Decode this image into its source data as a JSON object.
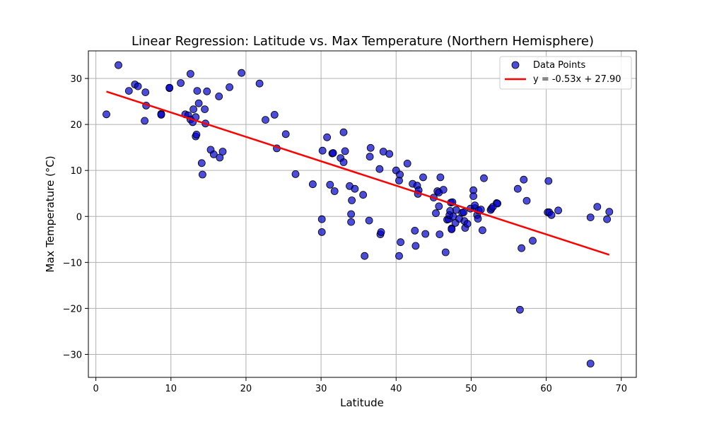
{
  "chart_data": {
    "type": "scatter",
    "title": "Linear Regression: Latitude vs. Max Temperature (Northern Hemisphere)",
    "xlabel": "Latitude",
    "ylabel": "Max Temperature (°C)",
    "xlim": [
      -1,
      72
    ],
    "ylim": [
      -35,
      36
    ],
    "xticks": [
      0,
      10,
      20,
      30,
      40,
      50,
      60,
      70
    ],
    "yticks": [
      -30,
      -20,
      -10,
      0,
      10,
      20,
      30
    ],
    "grid": true,
    "legend_position": "top-right",
    "colors": {
      "points": "#0000cc",
      "regression": "#ff0000"
    },
    "series": [
      {
        "name": "Data Points",
        "kind": "scatter",
        "points": [
          [
            1.4,
            22.2
          ],
          [
            3.0,
            32.9
          ],
          [
            4.4,
            27.3
          ],
          [
            5.2,
            28.7
          ],
          [
            5.6,
            28.3
          ],
          [
            6.5,
            20.8
          ],
          [
            6.6,
            27.0
          ],
          [
            6.7,
            24.1
          ],
          [
            8.7,
            22.3
          ],
          [
            8.7,
            22.1
          ],
          [
            9.8,
            27.9
          ],
          [
            9.8,
            28.0
          ],
          [
            11.3,
            29.0
          ],
          [
            11.9,
            22.2
          ],
          [
            12.3,
            22.0
          ],
          [
            12.6,
            31.0
          ],
          [
            12.6,
            21.1
          ],
          [
            12.9,
            20.5
          ],
          [
            13.0,
            23.3
          ],
          [
            13.3,
            21.6
          ],
          [
            13.3,
            17.4
          ],
          [
            13.4,
            17.8
          ],
          [
            13.5,
            27.3
          ],
          [
            13.7,
            24.6
          ],
          [
            14.1,
            11.6
          ],
          [
            14.2,
            9.1
          ],
          [
            14.5,
            23.3
          ],
          [
            14.6,
            20.2
          ],
          [
            14.8,
            27.2
          ],
          [
            15.3,
            14.5
          ],
          [
            15.7,
            13.5
          ],
          [
            16.4,
            26.1
          ],
          [
            16.5,
            12.8
          ],
          [
            16.9,
            14.1
          ],
          [
            17.8,
            28.1
          ],
          [
            19.4,
            31.2
          ],
          [
            21.8,
            28.9
          ],
          [
            22.6,
            21.0
          ],
          [
            23.8,
            22.1
          ],
          [
            24.1,
            14.8
          ],
          [
            25.3,
            17.9
          ],
          [
            26.6,
            9.2
          ],
          [
            28.9,
            7.0
          ],
          [
            30.1,
            -0.6
          ],
          [
            30.1,
            -3.4
          ],
          [
            30.2,
            14.3
          ],
          [
            30.8,
            17.2
          ],
          [
            31.2,
            6.9
          ],
          [
            31.5,
            13.7
          ],
          [
            31.6,
            13.8
          ],
          [
            31.8,
            5.5
          ],
          [
            32.6,
            12.7
          ],
          [
            33.0,
            11.8
          ],
          [
            33.0,
            18.3
          ],
          [
            33.2,
            14.2
          ],
          [
            33.8,
            6.6
          ],
          [
            34.0,
            -1.2
          ],
          [
            34.0,
            0.5
          ],
          [
            34.1,
            3.5
          ],
          [
            34.5,
            6.0
          ],
          [
            35.6,
            4.7
          ],
          [
            35.8,
            -8.6
          ],
          [
            36.4,
            -0.9
          ],
          [
            36.5,
            13.0
          ],
          [
            36.6,
            14.9
          ],
          [
            37.8,
            10.3
          ],
          [
            37.9,
            -3.9
          ],
          [
            38.0,
            -3.4
          ],
          [
            38.3,
            14.1
          ],
          [
            39.1,
            13.6
          ],
          [
            40.0,
            10.0
          ],
          [
            40.4,
            -8.6
          ],
          [
            40.4,
            7.8
          ],
          [
            40.5,
            9.1
          ],
          [
            40.6,
            -5.6
          ],
          [
            41.5,
            11.5
          ],
          [
            42.2,
            7.1
          ],
          [
            42.5,
            -3.1
          ],
          [
            42.6,
            -6.4
          ],
          [
            42.8,
            6.7
          ],
          [
            42.9,
            4.9
          ],
          [
            43.0,
            5.7
          ],
          [
            43.6,
            8.5
          ],
          [
            43.9,
            -3.8
          ],
          [
            45.0,
            4.1
          ],
          [
            45.3,
            0.7
          ],
          [
            45.5,
            5.5
          ],
          [
            45.7,
            2.2
          ],
          [
            45.7,
            5.2
          ],
          [
            45.8,
            -3.9
          ],
          [
            45.9,
            8.5
          ],
          [
            46.3,
            5.8
          ],
          [
            46.6,
            -7.8
          ],
          [
            46.8,
            -0.7
          ],
          [
            47.0,
            -0.6
          ],
          [
            47.1,
            0.3
          ],
          [
            47.2,
            1.2
          ],
          [
            47.3,
            3.0
          ],
          [
            47.4,
            -2.6
          ],
          [
            47.4,
            -2.8
          ],
          [
            47.5,
            3.1
          ],
          [
            47.6,
            0.0
          ],
          [
            47.9,
            -1.4
          ],
          [
            48.0,
            1.4
          ],
          [
            48.4,
            -0.5
          ],
          [
            48.8,
            0.8
          ],
          [
            49.0,
            0.9
          ],
          [
            49.1,
            -1.0
          ],
          [
            49.2,
            -2.5
          ],
          [
            49.5,
            -1.6
          ],
          [
            49.9,
            1.7
          ],
          [
            50.3,
            5.7
          ],
          [
            50.3,
            4.4
          ],
          [
            50.5,
            1.8
          ],
          [
            50.5,
            2.4
          ],
          [
            50.8,
            0.3
          ],
          [
            50.9,
            -0.5
          ],
          [
            51.0,
            1.3
          ],
          [
            51.3,
            1.5
          ],
          [
            51.5,
            -3.0
          ],
          [
            51.7,
            8.3
          ],
          [
            52.6,
            1.4
          ],
          [
            52.7,
            1.7
          ],
          [
            52.9,
            2.1
          ],
          [
            53.4,
            2.9
          ],
          [
            53.5,
            2.8
          ],
          [
            56.2,
            6.0
          ],
          [
            56.5,
            -20.3
          ],
          [
            56.7,
            -6.9
          ],
          [
            57.0,
            8.0
          ],
          [
            57.4,
            3.4
          ],
          [
            58.2,
            -5.3
          ],
          [
            60.2,
            0.9
          ],
          [
            60.3,
            7.7
          ],
          [
            60.4,
            0.9
          ],
          [
            60.7,
            0.3
          ],
          [
            61.6,
            1.3
          ],
          [
            65.9,
            -0.2
          ],
          [
            65.9,
            -32.0
          ],
          [
            66.8,
            2.1
          ],
          [
            68.1,
            -0.6
          ],
          [
            68.4,
            1.0
          ]
        ]
      },
      {
        "name": "y = -0.53x + 27.90",
        "kind": "line",
        "slope": -0.53,
        "intercept": 27.9,
        "x_range": [
          1.4,
          68.4
        ]
      }
    ]
  }
}
